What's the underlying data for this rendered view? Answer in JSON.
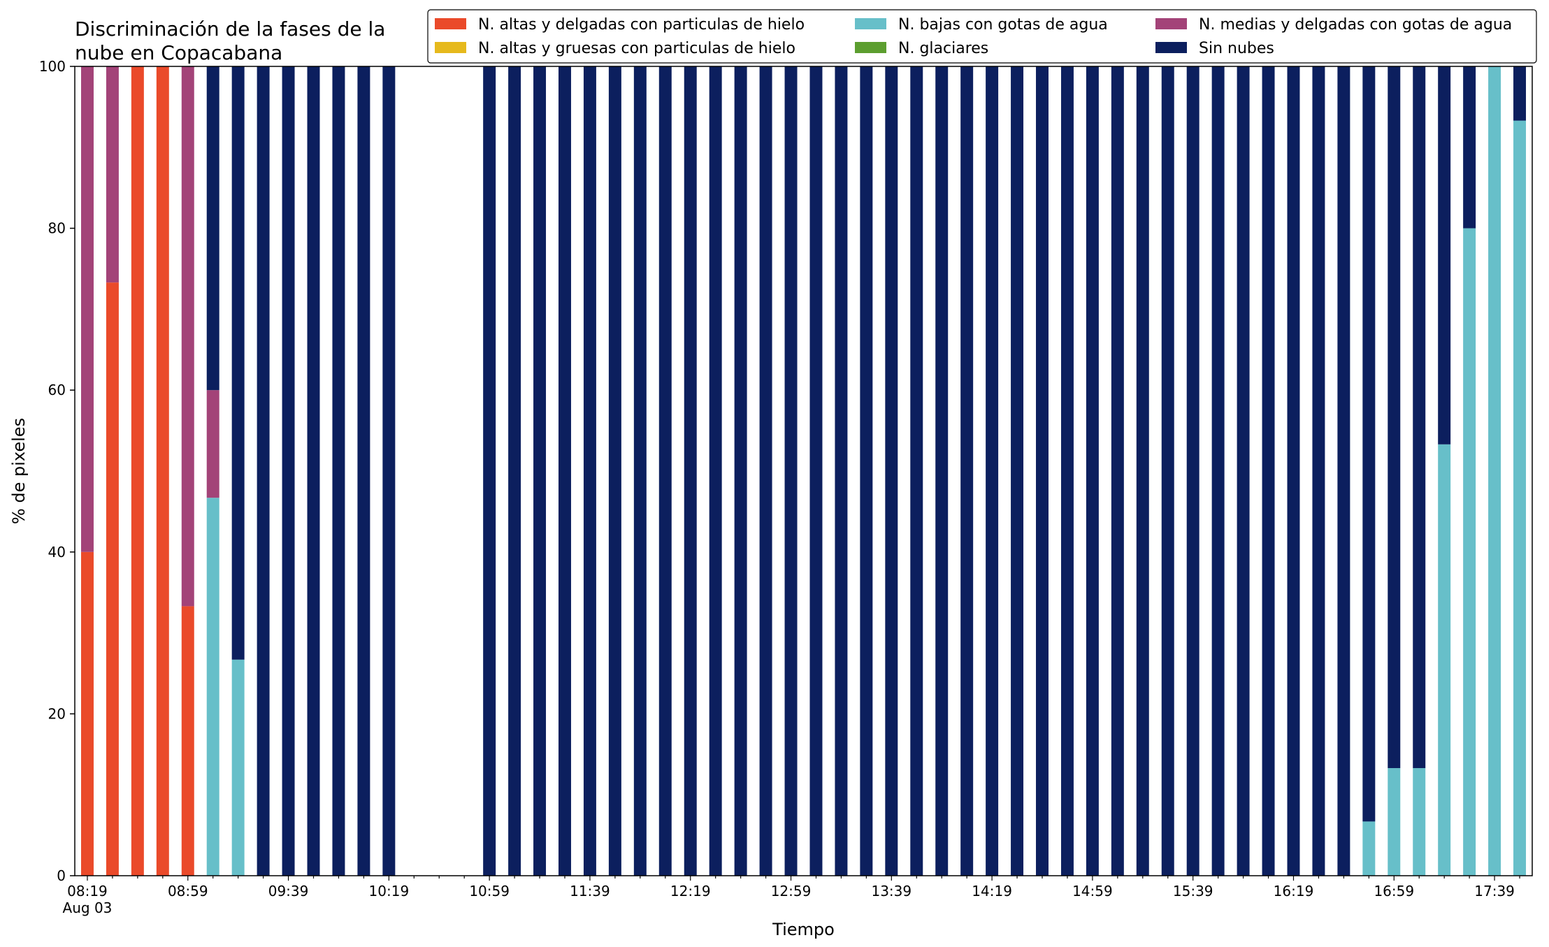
{
  "chart_data": {
    "type": "bar",
    "stacked": true,
    "title": "Discriminación de la fases de la nube en Copacabana",
    "title_lines": [
      "Discriminación de la fases de la",
      "nube en Copacabana"
    ],
    "xlabel": "Tiempo",
    "ylabel": "% de pixeles",
    "ylim": [
      0,
      100
    ],
    "yticks": [
      0,
      20,
      40,
      60,
      80,
      100
    ],
    "grid": false,
    "legend_position": "top-right",
    "x_start": "08:19",
    "x_step_minutes": 10,
    "x_date_label": "Aug 03",
    "x_tick_labels": [
      "08:19",
      "08:59",
      "09:39",
      "10:19",
      "10:59",
      "11:39",
      "12:19",
      "12:59",
      "13:39",
      "14:19",
      "14:59",
      "15:39",
      "16:19",
      "16:59",
      "17:39"
    ],
    "x": [
      "08:19",
      "08:29",
      "08:39",
      "08:49",
      "08:59",
      "09:09",
      "09:19",
      "09:29",
      "09:39",
      "09:49",
      "09:59",
      "10:09",
      "10:19",
      "10:29",
      "10:39",
      "10:49",
      "10:59",
      "11:09",
      "11:19",
      "11:29",
      "11:39",
      "11:49",
      "11:59",
      "12:09",
      "12:19",
      "12:29",
      "12:39",
      "12:49",
      "12:59",
      "13:09",
      "13:19",
      "13:29",
      "13:39",
      "13:49",
      "13:59",
      "14:09",
      "14:19",
      "14:29",
      "14:39",
      "14:49",
      "14:59",
      "15:09",
      "15:19",
      "15:29",
      "15:39",
      "15:49",
      "15:59",
      "16:09",
      "16:19",
      "16:29",
      "16:39",
      "16:49",
      "16:59",
      "17:09",
      "17:19",
      "17:29",
      "17:39",
      "17:49"
    ],
    "series": [
      {
        "name": "N. altas y delgadas con particulas de hielo",
        "color": "#ea4a2a",
        "values": [
          40,
          73.3,
          100,
          100,
          33.3,
          0,
          0,
          0,
          0,
          0,
          0,
          0,
          0,
          null,
          null,
          null,
          0,
          0,
          0,
          0,
          0,
          0,
          0,
          0,
          0,
          0,
          0,
          0,
          0,
          0,
          0,
          0,
          0,
          0,
          0,
          0,
          0,
          0,
          0,
          0,
          0,
          0,
          0,
          0,
          0,
          0,
          0,
          0,
          0,
          0,
          0,
          0,
          0,
          0,
          0,
          0,
          0,
          0
        ]
      },
      {
        "name": "N. altas y gruesas con particulas de hielo",
        "color": "#e6b91c",
        "values": [
          0,
          0,
          0,
          0,
          0,
          0,
          0,
          0,
          0,
          0,
          0,
          0,
          0,
          null,
          null,
          null,
          0,
          0,
          0,
          0,
          0,
          0,
          0,
          0,
          0,
          0,
          0,
          0,
          0,
          0,
          0,
          0,
          0,
          0,
          0,
          0,
          0,
          0,
          0,
          0,
          0,
          0,
          0,
          0,
          0,
          0,
          0,
          0,
          0,
          0,
          0,
          0,
          0,
          0,
          0,
          0,
          0,
          0
        ]
      },
      {
        "name": "N. bajas con gotas de agua",
        "color": "#67bfc9",
        "values": [
          0,
          0,
          0,
          0,
          0,
          46.7,
          26.7,
          0,
          0,
          0,
          0,
          0,
          0,
          null,
          null,
          null,
          0,
          0,
          0,
          0,
          0,
          0,
          0,
          0,
          0,
          0,
          0,
          0,
          0,
          0,
          0,
          0,
          0,
          0,
          0,
          0,
          0,
          0,
          0,
          0,
          0,
          0,
          0,
          0,
          0,
          0,
          0,
          0,
          0,
          0,
          0,
          6.7,
          13.3,
          13.3,
          53.3,
          80,
          100,
          93.3
        ]
      },
      {
        "name": "N. glaciares",
        "color": "#5c9e2f",
        "values": [
          0,
          0,
          0,
          0,
          0,
          0,
          0,
          0,
          0,
          0,
          0,
          0,
          0,
          null,
          null,
          null,
          0,
          0,
          0,
          0,
          0,
          0,
          0,
          0,
          0,
          0,
          0,
          0,
          0,
          0,
          0,
          0,
          0,
          0,
          0,
          0,
          0,
          0,
          0,
          0,
          0,
          0,
          0,
          0,
          0,
          0,
          0,
          0,
          0,
          0,
          0,
          0,
          0,
          0,
          0,
          0,
          0,
          0
        ]
      },
      {
        "name": "N. medias y delgadas con gotas de agua",
        "color": "#a34378",
        "values": [
          60,
          26.7,
          0,
          0,
          66.7,
          13.3,
          0,
          0,
          0,
          0,
          0,
          0,
          0,
          null,
          null,
          null,
          0,
          0,
          0,
          0,
          0,
          0,
          0,
          0,
          0,
          0,
          0,
          0,
          0,
          0,
          0,
          0,
          0,
          0,
          0,
          0,
          0,
          0,
          0,
          0,
          0,
          0,
          0,
          0,
          0,
          0,
          0,
          0,
          0,
          0,
          0,
          0,
          0,
          0,
          0,
          0,
          0,
          0
        ]
      },
      {
        "name": "Sin nubes",
        "color": "#0c1f5e",
        "values": [
          0,
          0,
          0,
          0,
          0,
          40,
          73.3,
          100,
          100,
          100,
          100,
          100,
          100,
          null,
          null,
          null,
          100,
          100,
          100,
          100,
          100,
          100,
          100,
          100,
          100,
          100,
          100,
          100,
          100,
          100,
          100,
          100,
          100,
          100,
          100,
          100,
          100,
          100,
          100,
          100,
          100,
          100,
          100,
          100,
          100,
          100,
          100,
          100,
          100,
          100,
          100,
          93.3,
          86.7,
          86.7,
          46.7,
          20,
          0,
          6.7
        ]
      }
    ]
  }
}
